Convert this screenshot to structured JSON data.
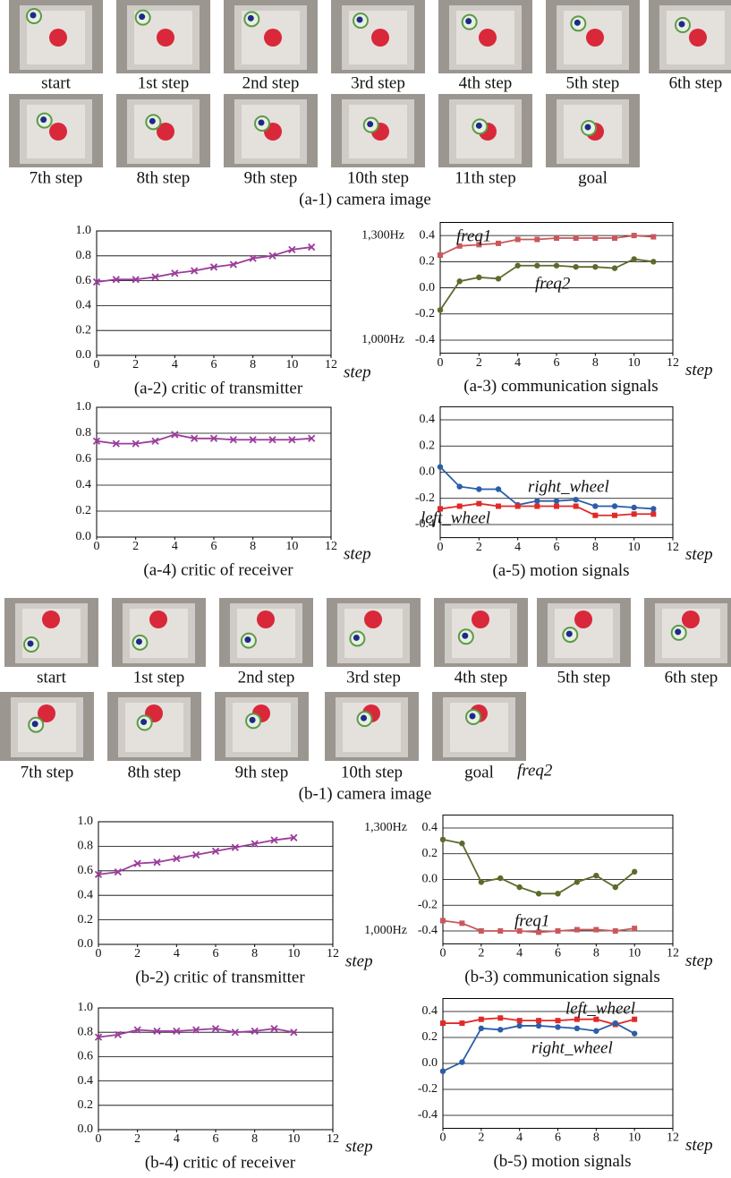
{
  "camera_a": {
    "labels": [
      "start",
      "1st step",
      "2nd step",
      "3rd step",
      "4th step",
      "5th step",
      "6th step",
      "7th step",
      "8th step",
      "9th step",
      "10th step",
      "11th step",
      "goal"
    ],
    "caption": "(a-1) camera image"
  },
  "camera_b": {
    "labels": [
      "start",
      "1st step",
      "2nd step",
      "3rd step",
      "4th step",
      "5th step",
      "6th step",
      "7th step",
      "8th step",
      "9th step",
      "10th step",
      "goal"
    ],
    "caption": "(b-1) camera image"
  },
  "chart_data": [
    {
      "type": "line",
      "title": "(a-2) critic of transmitter",
      "xlabel": "step",
      "x": [
        0,
        1,
        2,
        3,
        4,
        5,
        6,
        7,
        8,
        9,
        10,
        11
      ],
      "xlim": [
        0,
        12
      ],
      "xticks": [
        0,
        2,
        4,
        6,
        8,
        10,
        12
      ],
      "ylim": [
        0,
        1
      ],
      "yticks": [
        {
          "value": 0,
          "label": "0.0"
        },
        0.2,
        0.4,
        0.6,
        0.8,
        {
          "value": 1,
          "label": "1.0"
        }
      ],
      "grid": true,
      "series": [
        {
          "color": "#9b3d9b",
          "marker": "x",
          "values": [
            0.59,
            0.61,
            0.61,
            0.63,
            0.66,
            0.68,
            0.71,
            0.73,
            0.78,
            0.8,
            0.85,
            0.87
          ]
        }
      ]
    },
    {
      "type": "line",
      "title": "(a-3) communication signals",
      "xlabel": "step",
      "x": [
        0,
        1,
        2,
        3,
        4,
        5,
        6,
        7,
        8,
        9,
        10,
        11
      ],
      "xlim": [
        0,
        12
      ],
      "xticks": [
        0,
        2,
        4,
        6,
        8,
        10,
        12
      ],
      "ylim": [
        -0.5,
        0.5
      ],
      "yticks": [
        -0.4,
        -0.2,
        {
          "value": 0,
          "label": "0.0"
        },
        0.2,
        0.4
      ],
      "grid": true,
      "y_side_labels": [
        {
          "value": 0.4,
          "label": "1,300Hz"
        },
        {
          "value": -0.4,
          "label": "1,000Hz"
        }
      ],
      "series": [
        {
          "name": "freq1",
          "color": "#c9585c",
          "marker": "square",
          "values": [
            0.25,
            0.32,
            0.33,
            0.34,
            0.37,
            0.37,
            0.38,
            0.38,
            0.38,
            0.38,
            0.4,
            0.39
          ]
        },
        {
          "name": "freq2",
          "color": "#5b6b2c",
          "marker": "circle",
          "values": [
            -0.17,
            0.05,
            0.08,
            0.07,
            0.17,
            0.17,
            0.17,
            0.16,
            0.16,
            0.15,
            0.22,
            0.2
          ]
        }
      ]
    },
    {
      "type": "line",
      "title": "(a-4) critic of receiver",
      "xlabel": "step",
      "x": [
        0,
        1,
        2,
        3,
        4,
        5,
        6,
        7,
        8,
        9,
        10,
        11
      ],
      "xlim": [
        0,
        12
      ],
      "xticks": [
        0,
        2,
        4,
        6,
        8,
        10,
        12
      ],
      "ylim": [
        0,
        1
      ],
      "yticks": [
        {
          "value": 0,
          "label": "0.0"
        },
        0.2,
        0.4,
        0.6,
        0.8,
        {
          "value": 1,
          "label": "1.0"
        }
      ],
      "grid": true,
      "series": [
        {
          "color": "#9b3d9b",
          "marker": "x",
          "values": [
            0.74,
            0.72,
            0.72,
            0.74,
            0.79,
            0.76,
            0.76,
            0.75,
            0.75,
            0.75,
            0.75,
            0.76
          ]
        }
      ]
    },
    {
      "type": "line",
      "title": "(a-5) motion signals",
      "xlabel": "step",
      "x": [
        0,
        1,
        2,
        3,
        4,
        5,
        6,
        7,
        8,
        9,
        10,
        11
      ],
      "xlim": [
        0,
        12
      ],
      "xticks": [
        0,
        2,
        4,
        6,
        8,
        10,
        12
      ],
      "ylim": [
        -0.5,
        0.5
      ],
      "yticks": [
        -0.4,
        -0.2,
        {
          "value": 0,
          "label": "0.0"
        },
        0.2,
        0.4
      ],
      "grid": true,
      "series": [
        {
          "name": "right_wheel",
          "color": "#2b5ea8",
          "marker": "circle",
          "values": [
            0.04,
            -0.11,
            -0.13,
            -0.13,
            -0.25,
            -0.22,
            -0.22,
            -0.21,
            -0.26,
            -0.26,
            -0.27,
            -0.28
          ]
        },
        {
          "name": "left_wheel",
          "color": "#e02a2a",
          "marker": "square",
          "values": [
            -0.28,
            -0.26,
            -0.24,
            -0.26,
            -0.26,
            -0.26,
            -0.26,
            -0.26,
            -0.33,
            -0.33,
            -0.32,
            -0.32
          ]
        }
      ]
    },
    {
      "type": "line",
      "title": "(b-2) critic of transmitter",
      "xlabel": "step",
      "x": [
        0,
        1,
        2,
        3,
        4,
        5,
        6,
        7,
        8,
        9,
        10
      ],
      "xlim": [
        0,
        12
      ],
      "xticks": [
        0,
        2,
        4,
        6,
        8,
        10,
        12
      ],
      "ylim": [
        0,
        1
      ],
      "yticks": [
        {
          "value": 0,
          "label": "0.0"
        },
        0.2,
        0.4,
        0.6,
        0.8,
        {
          "value": 1,
          "label": "1.0"
        }
      ],
      "grid": true,
      "series": [
        {
          "color": "#9b3d9b",
          "marker": "x",
          "values": [
            0.57,
            0.59,
            0.66,
            0.67,
            0.7,
            0.73,
            0.76,
            0.79,
            0.82,
            0.85,
            0.87
          ]
        }
      ]
    },
    {
      "type": "line",
      "title": "(b-3) communication signals",
      "xlabel": "step",
      "x": [
        0,
        1,
        2,
        3,
        4,
        5,
        6,
        7,
        8,
        9,
        10
      ],
      "xlim": [
        0,
        12
      ],
      "xticks": [
        0,
        2,
        4,
        6,
        8,
        10,
        12
      ],
      "ylim": [
        -0.5,
        0.5
      ],
      "yticks": [
        -0.4,
        -0.2,
        {
          "value": 0,
          "label": "0.0"
        },
        0.2,
        0.4
      ],
      "grid": true,
      "y_side_labels": [
        {
          "value": 0.4,
          "label": "1,300Hz"
        },
        {
          "value": -0.4,
          "label": "1,000Hz"
        }
      ],
      "series": [
        {
          "name": "freq2",
          "color": "#5b6b2c",
          "marker": "circle",
          "values": [
            0.31,
            0.28,
            -0.02,
            0.01,
            -0.06,
            -0.11,
            -0.11,
            -0.02,
            0.03,
            -0.06,
            0.06
          ]
        },
        {
          "name": "freq1",
          "color": "#c9585c",
          "marker": "square",
          "values": [
            -0.32,
            -0.34,
            -0.4,
            -0.4,
            -0.4,
            -0.41,
            -0.4,
            -0.39,
            -0.39,
            -0.4,
            -0.38
          ]
        }
      ]
    },
    {
      "type": "line",
      "title": "(b-4) critic of receiver",
      "xlabel": "step",
      "x": [
        0,
        1,
        2,
        3,
        4,
        5,
        6,
        7,
        8,
        9,
        10
      ],
      "xlim": [
        0,
        12
      ],
      "xticks": [
        0,
        2,
        4,
        6,
        8,
        10,
        12
      ],
      "ylim": [
        0,
        1
      ],
      "yticks": [
        {
          "value": 0,
          "label": "0.0"
        },
        0.2,
        0.4,
        0.6,
        0.8,
        {
          "value": 1,
          "label": "1.0"
        }
      ],
      "grid": true,
      "series": [
        {
          "color": "#9b3d9b",
          "marker": "x",
          "values": [
            0.76,
            0.78,
            0.82,
            0.81,
            0.81,
            0.82,
            0.83,
            0.8,
            0.81,
            0.83,
            0.8
          ]
        }
      ]
    },
    {
      "type": "line",
      "title": "(b-5) motion signals",
      "xlabel": "step",
      "x": [
        0,
        1,
        2,
        3,
        4,
        5,
        6,
        7,
        8,
        9,
        10
      ],
      "xlim": [
        0,
        12
      ],
      "xticks": [
        0,
        2,
        4,
        6,
        8,
        10,
        12
      ],
      "ylim": [
        -0.5,
        0.5
      ],
      "yticks": [
        -0.4,
        -0.2,
        {
          "value": 0,
          "label": "0.0"
        },
        0.2,
        0.4
      ],
      "grid": true,
      "series": [
        {
          "name": "left_wheel",
          "color": "#e02a2a",
          "marker": "square",
          "values": [
            0.31,
            0.31,
            0.34,
            0.35,
            0.33,
            0.33,
            0.33,
            0.34,
            0.34,
            0.3,
            0.34
          ]
        },
        {
          "name": "right_wheel",
          "color": "#2b5ea8",
          "marker": "circle",
          "values": [
            -0.06,
            0.01,
            0.27,
            0.26,
            0.29,
            0.29,
            0.28,
            0.27,
            0.25,
            0.31,
            0.23
          ]
        }
      ]
    }
  ]
}
